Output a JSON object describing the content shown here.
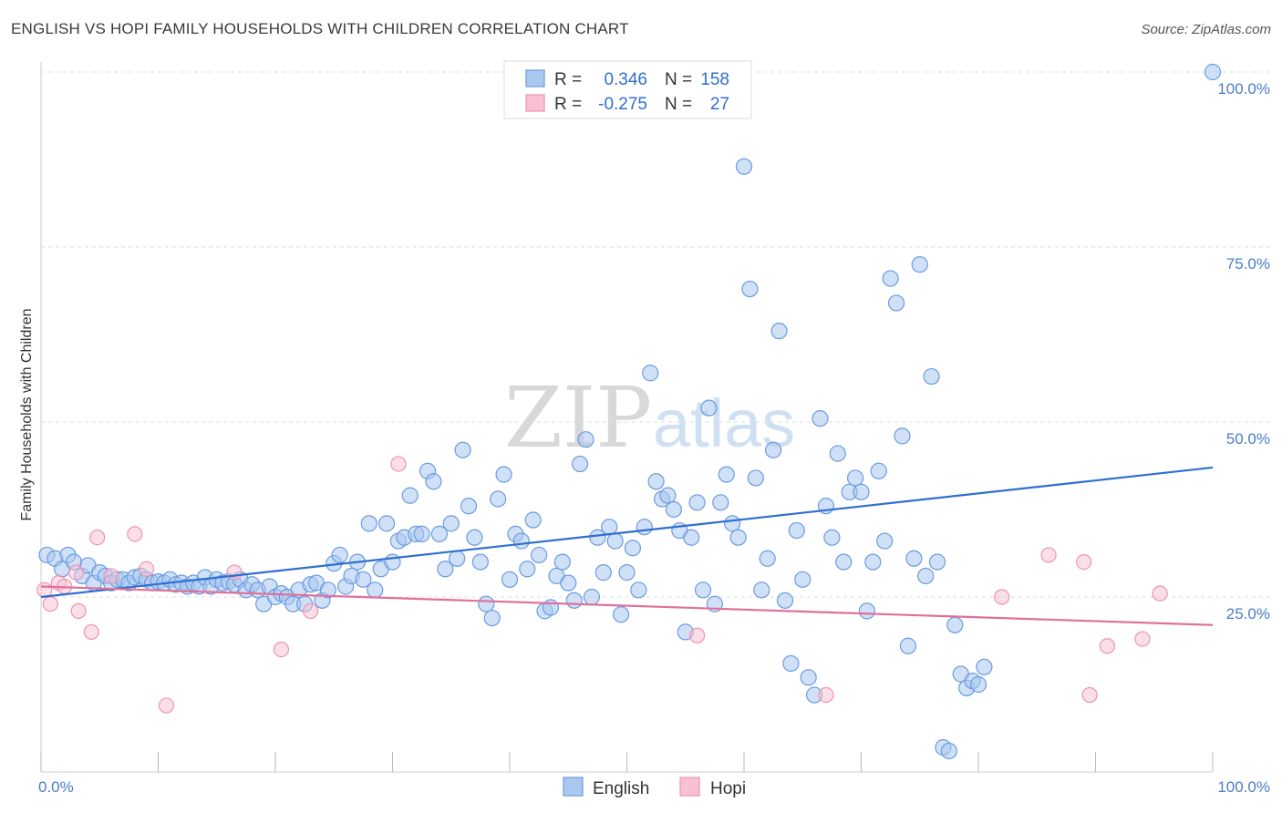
{
  "title": "ENGLISH VS HOPI FAMILY HOUSEHOLDS WITH CHILDREN CORRELATION CHART",
  "source": "Source: ZipAtlas.com",
  "watermark": {
    "zip": "ZIP",
    "atlas": "atlas"
  },
  "colors": {
    "english_fill": "#a9c8f0",
    "english_stroke": "#6a9be0",
    "english_line": "#2f6fd0",
    "hopi_fill": "#f8c0d2",
    "hopi_stroke": "#ee93b2",
    "hopi_line": "#e0709a",
    "grid": "#dddddd",
    "tick_text": "#4a7cc7"
  },
  "legend": {
    "rows": [
      {
        "r_label": "R =",
        "r_value": "0.346",
        "n_label": "N =",
        "n_value": "158"
      },
      {
        "r_label": "R =",
        "r_value": "-0.275",
        "n_label": "N =",
        "n_value": "27"
      }
    ]
  },
  "chart_data": {
    "type": "scatter",
    "title": "ENGLISH VS HOPI FAMILY HOUSEHOLDS WITH CHILDREN CORRELATION CHART",
    "xlabel": "",
    "ylabel": "Family Households with Children",
    "xlim": [
      0,
      100
    ],
    "ylim": [
      0,
      100
    ],
    "x_tick_labels": [
      "0.0%",
      "100.0%"
    ],
    "y_tick_labels": [
      "25.0%",
      "50.0%",
      "75.0%",
      "100.0%"
    ],
    "y_ticks": [
      25,
      50,
      75,
      100
    ],
    "grid": true,
    "legend_position": "top-center",
    "series": [
      {
        "name": "English",
        "r": 0.346,
        "n": 158,
        "trend": {
          "x": [
            0,
            100
          ],
          "y": [
            25.0,
            43.5
          ]
        },
        "points": [
          [
            0.5,
            31
          ],
          [
            1.2,
            30.5
          ],
          [
            1.8,
            29
          ],
          [
            2.3,
            31
          ],
          [
            2.8,
            30
          ],
          [
            3.5,
            28
          ],
          [
            4,
            29.5
          ],
          [
            4.5,
            27
          ],
          [
            5,
            28.5
          ],
          [
            5.5,
            28
          ],
          [
            6,
            27
          ],
          [
            6.5,
            27.5
          ],
          [
            7,
            27.5
          ],
          [
            7.5,
            27
          ],
          [
            8,
            27.8
          ],
          [
            8.5,
            28
          ],
          [
            9,
            27.5
          ],
          [
            9.5,
            27
          ],
          [
            10,
            27.2
          ],
          [
            10.5,
            27
          ],
          [
            11,
            27.5
          ],
          [
            11.5,
            26.8
          ],
          [
            12,
            27
          ],
          [
            12.5,
            26.5
          ],
          [
            13,
            27
          ],
          [
            13.5,
            26.5
          ],
          [
            14,
            27.8
          ],
          [
            14.5,
            26.5
          ],
          [
            15,
            27.5
          ],
          [
            15.5,
            27
          ],
          [
            16,
            27.2
          ],
          [
            16.5,
            26.8
          ],
          [
            17,
            27.5
          ],
          [
            17.5,
            26
          ],
          [
            18,
            26.8
          ],
          [
            18.5,
            26
          ],
          [
            19,
            24
          ],
          [
            19.5,
            26.5
          ],
          [
            20,
            25
          ],
          [
            20.5,
            25.5
          ],
          [
            21,
            25
          ],
          [
            21.5,
            24
          ],
          [
            22,
            26
          ],
          [
            22.5,
            24
          ],
          [
            23,
            26.8
          ],
          [
            23.5,
            27
          ],
          [
            24,
            24.5
          ],
          [
            24.5,
            26
          ],
          [
            25,
            29.8
          ],
          [
            25.5,
            31
          ],
          [
            26,
            26.5
          ],
          [
            26.5,
            28
          ],
          [
            27,
            30
          ],
          [
            27.5,
            27.5
          ],
          [
            28,
            35.5
          ],
          [
            28.5,
            26
          ],
          [
            29,
            29
          ],
          [
            29.5,
            35.5
          ],
          [
            30,
            30
          ],
          [
            30.5,
            33
          ],
          [
            31,
            33.5
          ],
          [
            31.5,
            39.5
          ],
          [
            32,
            34
          ],
          [
            32.5,
            34
          ],
          [
            33,
            43
          ],
          [
            33.5,
            41.5
          ],
          [
            34,
            34
          ],
          [
            34.5,
            29
          ],
          [
            35,
            35.5
          ],
          [
            35.5,
            30.5
          ],
          [
            36,
            46
          ],
          [
            36.5,
            38
          ],
          [
            37,
            33.5
          ],
          [
            37.5,
            30
          ],
          [
            38,
            24
          ],
          [
            38.5,
            22
          ],
          [
            39,
            39
          ],
          [
            39.5,
            42.5
          ],
          [
            40,
            27.5
          ],
          [
            40.5,
            34
          ],
          [
            41,
            33
          ],
          [
            41.5,
            29
          ],
          [
            42,
            36
          ],
          [
            42.5,
            31
          ],
          [
            43,
            23
          ],
          [
            43.5,
            23.5
          ],
          [
            44,
            28
          ],
          [
            44.5,
            30
          ],
          [
            45,
            27
          ],
          [
            45.5,
            24.5
          ],
          [
            46,
            44
          ],
          [
            46.5,
            47.5
          ],
          [
            47,
            25
          ],
          [
            47.5,
            33.5
          ],
          [
            48,
            28.5
          ],
          [
            48.5,
            35
          ],
          [
            49,
            33
          ],
          [
            49.5,
            22.5
          ],
          [
            50,
            28.5
          ],
          [
            50.5,
            32
          ],
          [
            51,
            26
          ],
          [
            51.5,
            35
          ],
          [
            52,
            57
          ],
          [
            52.5,
            41.5
          ],
          [
            53,
            39
          ],
          [
            53.5,
            39.5
          ],
          [
            54,
            37.5
          ],
          [
            54.5,
            34.5
          ],
          [
            55,
            20
          ],
          [
            55.5,
            33.5
          ],
          [
            56,
            38.5
          ],
          [
            56.5,
            26
          ],
          [
            57,
            52
          ],
          [
            57.5,
            24
          ],
          [
            58,
            38.5
          ],
          [
            58.5,
            42.5
          ],
          [
            59,
            35.5
          ],
          [
            59.5,
            33.5
          ],
          [
            60,
            86.5
          ],
          [
            60.5,
            69
          ],
          [
            61,
            42
          ],
          [
            61.5,
            26
          ],
          [
            62,
            30.5
          ],
          [
            62.5,
            46
          ],
          [
            63,
            63
          ],
          [
            63.5,
            24.5
          ],
          [
            64,
            15.5
          ],
          [
            64.5,
            34.5
          ],
          [
            65,
            27.5
          ],
          [
            65.5,
            13.5
          ],
          [
            66,
            11
          ],
          [
            66.5,
            50.5
          ],
          [
            67,
            38
          ],
          [
            67.5,
            33.5
          ],
          [
            68,
            45.5
          ],
          [
            68.5,
            30
          ],
          [
            69,
            40
          ],
          [
            69.5,
            42
          ],
          [
            70,
            40
          ],
          [
            70.5,
            23
          ],
          [
            71,
            30
          ],
          [
            71.5,
            43
          ],
          [
            72,
            33
          ],
          [
            72.5,
            70.5
          ],
          [
            73,
            67
          ],
          [
            73.5,
            48
          ],
          [
            74,
            18
          ],
          [
            74.5,
            30.5
          ],
          [
            75,
            72.5
          ],
          [
            75.5,
            28
          ],
          [
            76,
            56.5
          ],
          [
            76.5,
            30
          ],
          [
            77,
            3.5
          ],
          [
            77.5,
            3
          ],
          [
            78,
            21
          ],
          [
            78.5,
            14
          ],
          [
            79,
            12
          ],
          [
            79.5,
            13
          ],
          [
            80,
            12.5
          ],
          [
            80.5,
            15
          ],
          [
            100,
            100
          ]
        ]
      },
      {
        "name": "Hopi",
        "r": -0.275,
        "n": 27,
        "trend": {
          "x": [
            0,
            100
          ],
          "y": [
            26.5,
            21.0
          ]
        },
        "points": [
          [
            0.3,
            26
          ],
          [
            0.8,
            24
          ],
          [
            1.5,
            27
          ],
          [
            2,
            26.5
          ],
          [
            3,
            28.5
          ],
          [
            3.2,
            23
          ],
          [
            4.3,
            20
          ],
          [
            4.8,
            33.5
          ],
          [
            6,
            28
          ],
          [
            8,
            34
          ],
          [
            9,
            29
          ],
          [
            10.7,
            9.5
          ],
          [
            16.5,
            28.5
          ],
          [
            20.5,
            17.5
          ],
          [
            23,
            23
          ],
          [
            30.5,
            44
          ],
          [
            56,
            19.5
          ],
          [
            67,
            11
          ],
          [
            82,
            25
          ],
          [
            86,
            31
          ],
          [
            89,
            30
          ],
          [
            89.5,
            11
          ],
          [
            91,
            18
          ],
          [
            94,
            19
          ],
          [
            95.5,
            25.5
          ]
        ]
      }
    ]
  },
  "bottom_legend": {
    "english": "English",
    "hopi": "Hopi"
  }
}
